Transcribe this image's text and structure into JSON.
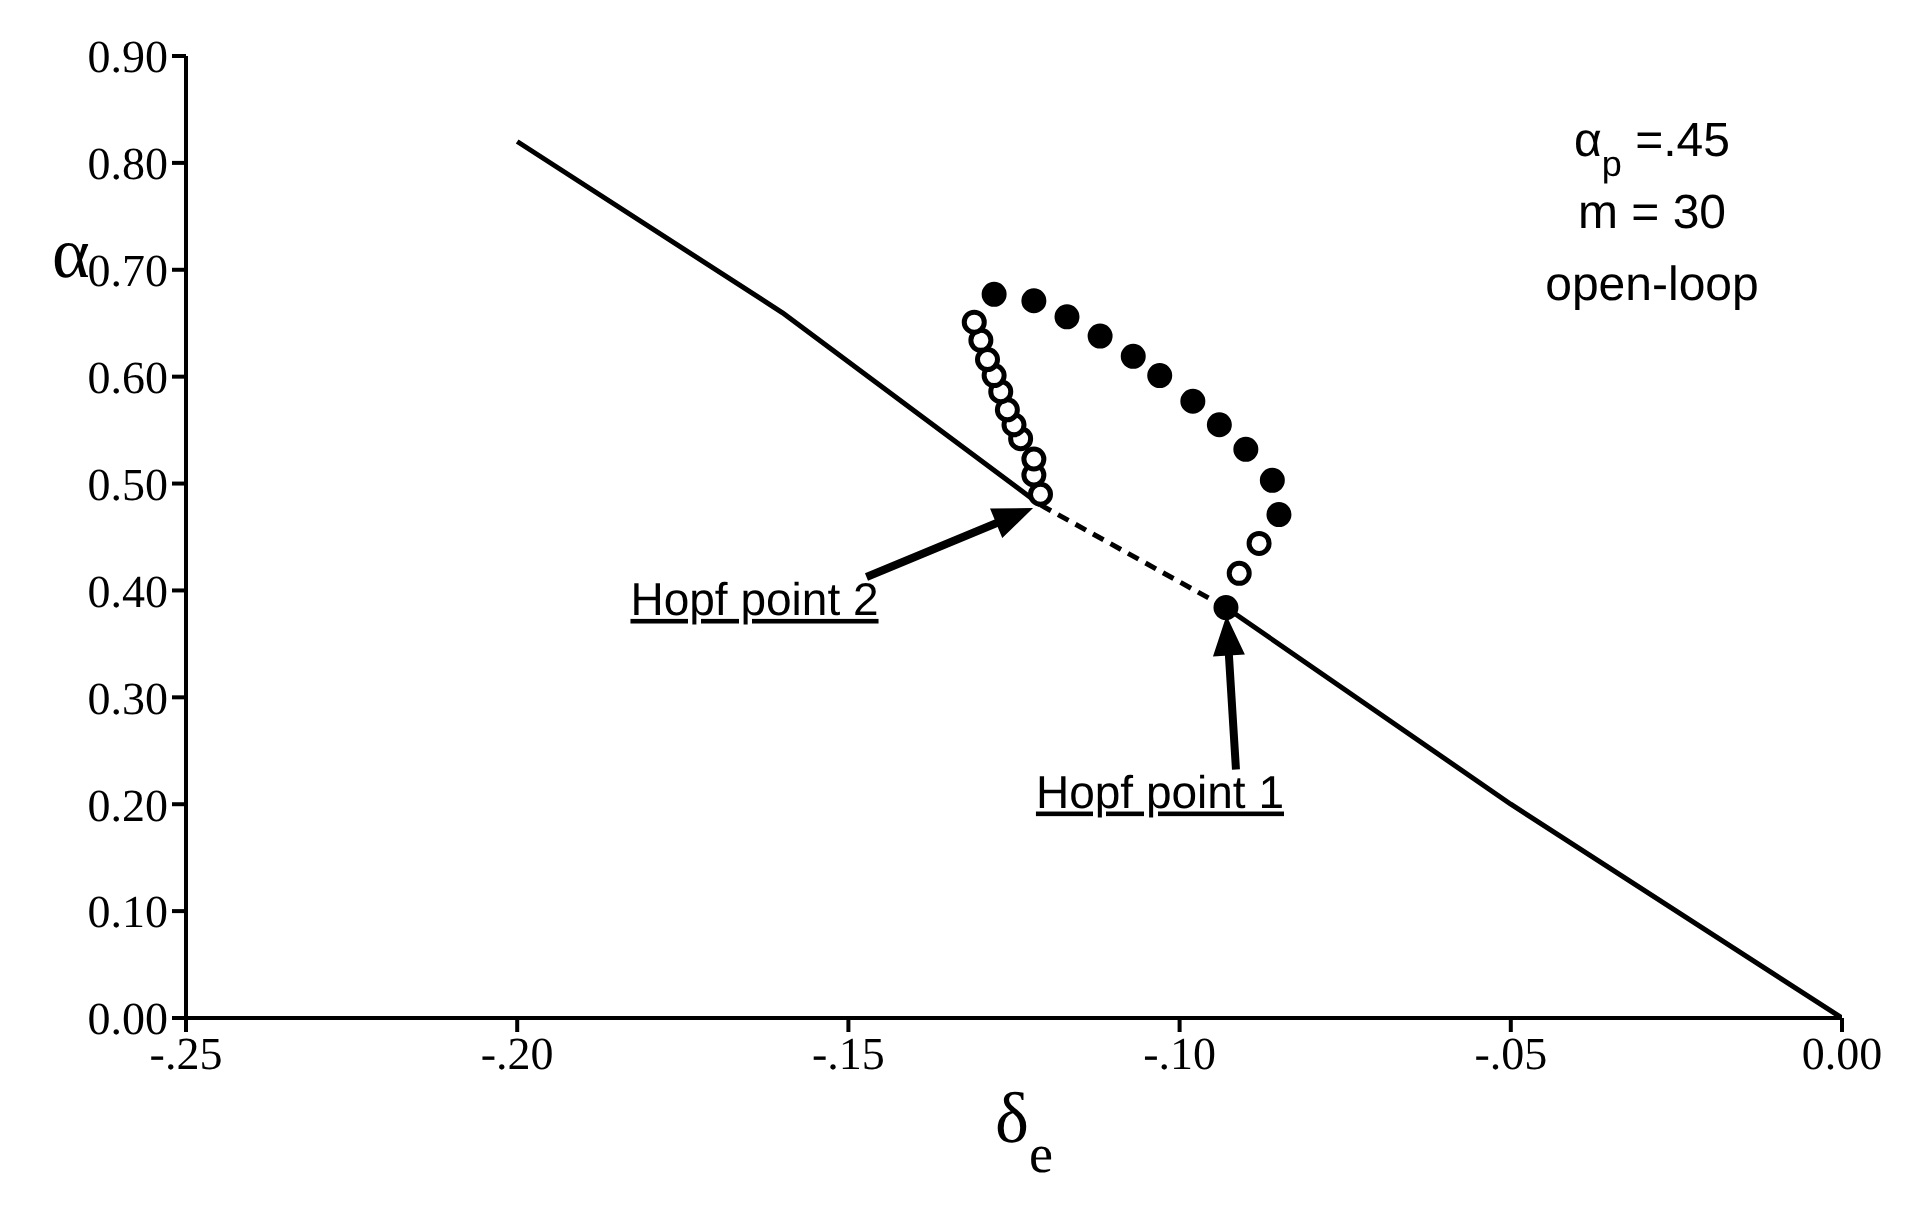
{
  "chart_data": {
    "type": "line",
    "xlabel": "δ$_{e}$",
    "ylabel": "α",
    "xlim": [
      -0.25,
      0
    ],
    "ylim": [
      0,
      0.9
    ],
    "xticks": [
      {
        "value": -0.25,
        "label": "-.25"
      },
      {
        "value": -0.2,
        "label": "-.20"
      },
      {
        "value": -0.15,
        "label": "-.15"
      },
      {
        "value": -0.1,
        "label": "-.10"
      },
      {
        "value": -0.05,
        "label": "-.05"
      },
      {
        "value": 0,
        "label": "0.00"
      }
    ],
    "yticks": [
      {
        "value": 0,
        "label": "0.00"
      },
      {
        "value": 0.1,
        "label": "0.10"
      },
      {
        "value": 0.2,
        "label": "0.20"
      },
      {
        "value": 0.3,
        "label": "0.30"
      },
      {
        "value": 0.4,
        "label": "0.40"
      },
      {
        "value": 0.5,
        "label": "0.50"
      },
      {
        "value": 0.6,
        "label": "0.60"
      },
      {
        "value": 0.7,
        "label": "0.70"
      },
      {
        "value": 0.8,
        "label": "0.80"
      },
      {
        "value": 0.9,
        "label": "0.90"
      }
    ],
    "grid": false,
    "series": [
      {
        "color": "#000000",
        "line_style": "solid",
        "marker": "none",
        "x": [
          -0.2,
          -0.16,
          -0.121
        ],
        "values": [
          0.82,
          0.66,
          0.48
        ]
      },
      {
        "color": "#000000",
        "line_style": "dashed",
        "marker": "none",
        "x": [
          -0.121,
          -0.093
        ],
        "values": [
          0.48,
          0.384
        ]
      },
      {
        "color": "#000000",
        "line_style": "solid",
        "marker": "none",
        "x": [
          -0.093,
          -0.05,
          0
        ],
        "values": [
          0.384,
          0.2,
          0
        ]
      },
      {
        "type": "scatter",
        "color": "#ffffff",
        "marker": "circle",
        "x": [
          -0.121,
          -0.122,
          -0.122,
          -0.124,
          -0.125,
          -0.126,
          -0.127,
          -0.128,
          -0.129,
          -0.13,
          -0.131,
          -0.091,
          -0.088
        ],
        "values": [
          0.49,
          0.508,
          0.523,
          0.542,
          0.555,
          0.569,
          0.586,
          0.601,
          0.616,
          0.634,
          0.651,
          0.416,
          0.444
        ]
      },
      {
        "type": "scatter",
        "color": "#000000",
        "marker": "circle",
        "x": [
          -0.128,
          -0.122,
          -0.117,
          -0.112,
          -0.107,
          -0.103,
          -0.098,
          -0.094,
          -0.09,
          -0.086,
          -0.085,
          -0.093
        ],
        "values": [
          0.677,
          0.671,
          0.656,
          0.638,
          0.619,
          0.601,
          0.577,
          0.555,
          0.532,
          0.503,
          0.471,
          0.384
        ]
      }
    ],
    "annotations": [
      "α$_{p}$ =.45",
      "m = 30",
      "open-loop",
      "Hopf point 2",
      "Hopf point 1"
    ]
  }
}
